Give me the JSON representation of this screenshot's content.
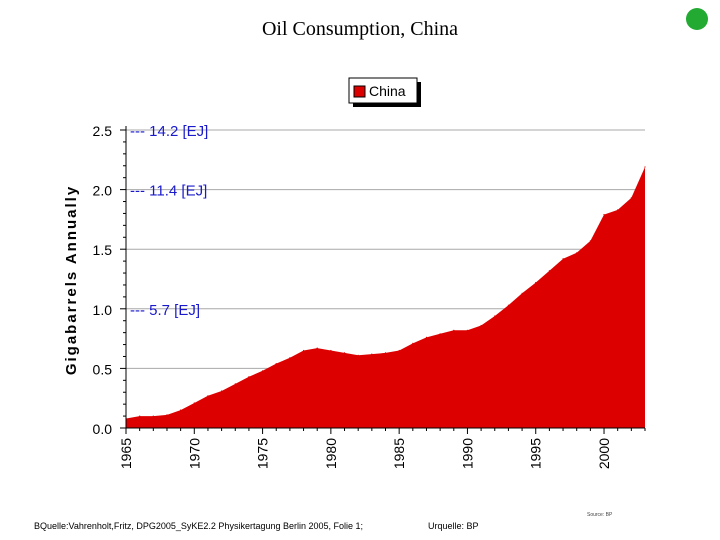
{
  "page": {
    "title": "Oil Consumption, China",
    "footer_left": "BQuelle:Vahrenholt,Fritz, DPG2005_SyKE2.2 Physikertagung Berlin 2005, Folie 1;",
    "footer_right": "Urquelle: BP",
    "footer_source": "Source: BP",
    "status_color": "#22aa33"
  },
  "chart_data": {
    "type": "area",
    "title": "",
    "ylabel": "Gigabarrels Annually",
    "xlabel": "",
    "ylim": [
      0,
      2.5
    ],
    "xlim": [
      1965,
      2003
    ],
    "x_ticks": [
      "1965",
      "1970",
      "1975",
      "1980",
      "1985",
      "1990",
      "1995",
      "2000"
    ],
    "y_ticks": [
      "0.0",
      "0.5",
      "1.0",
      "1.5",
      "2.0",
      "2.5"
    ],
    "grid": "horizontal",
    "legend_position": "top-center",
    "series": [
      {
        "name": "China",
        "color": "#dd0000",
        "x": [
          1965,
          1966,
          1967,
          1968,
          1969,
          1970,
          1971,
          1972,
          1973,
          1974,
          1975,
          1976,
          1977,
          1978,
          1979,
          1980,
          1981,
          1982,
          1983,
          1984,
          1985,
          1986,
          1987,
          1988,
          1989,
          1990,
          1991,
          1992,
          1993,
          1994,
          1995,
          1996,
          1997,
          1998,
          1999,
          2000,
          2001,
          2002,
          2003
        ],
        "values": [
          0.08,
          0.1,
          0.1,
          0.11,
          0.15,
          0.21,
          0.27,
          0.31,
          0.37,
          0.43,
          0.48,
          0.54,
          0.59,
          0.65,
          0.67,
          0.65,
          0.63,
          0.61,
          0.62,
          0.63,
          0.65,
          0.71,
          0.76,
          0.79,
          0.82,
          0.82,
          0.86,
          0.94,
          1.03,
          1.13,
          1.22,
          1.32,
          1.42,
          1.47,
          1.57,
          1.79,
          1.83,
          1.93,
          2.19
        ]
      }
    ],
    "annotations": [
      {
        "label": "--- 14.2 [EJ]",
        "y": 2.5
      },
      {
        "label": "--- 11.4 [EJ]",
        "y": 2.0
      },
      {
        "label": "--- 5.7 [EJ]",
        "y": 1.0
      }
    ]
  }
}
